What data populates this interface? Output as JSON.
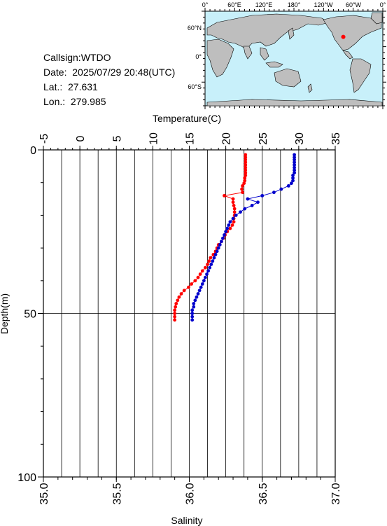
{
  "station": {
    "callsign_line": "Callsign:WTDO",
    "date_line": "Date:  2025/07/29 20:48(UTC)",
    "lat_line": "Lat.:  27.631",
    "lon_line": "Lon.:  279.985"
  },
  "map": {
    "top_labels": [
      "0°",
      "60°E",
      "120°E",
      "180°",
      "120°W",
      "60°W",
      "0°"
    ],
    "left_labels": [
      "60°N",
      "0°",
      "60°S"
    ],
    "ocean_color": "#c8f0fa",
    "land_color": "#bebebe",
    "marker_color": "#ff0000",
    "marker_lon": 279.985,
    "marker_lat": 27.631
  },
  "chart_data": {
    "type": "line",
    "title": "",
    "x_top_label": "Temperature(C)",
    "x_bottom_label": "Salinity",
    "ylabel": "Depth(m)",
    "temperature_ticks": [
      "-5",
      "0",
      "5",
      "10",
      "15",
      "20",
      "25",
      "30",
      "35"
    ],
    "salinity_ticks": [
      "35.0",
      "35.5",
      "36.0",
      "36.5",
      "37.0"
    ],
    "depth_ticks": [
      "0",
      "50",
      "100"
    ],
    "temperature_range": [
      -5,
      35
    ],
    "salinity_range": [
      35.0,
      37.0
    ],
    "depth_range": [
      0,
      100
    ],
    "series": [
      {
        "name": "Temperature",
        "axis": "temperature",
        "color": "#ff0000",
        "depth": [
          1.5,
          2.3,
          3.0,
          3.8,
          4.6,
          5.4,
          6.2,
          7.0,
          7.8,
          8.6,
          9.4,
          10.2,
          11.0,
          12.0,
          13.0,
          14.0,
          15.0,
          16.0,
          17.0,
          18.0,
          19.0,
          20.0,
          21.0,
          22.0,
          23.0,
          24.0,
          25.0,
          26.0,
          27.0,
          28.0,
          29.0,
          30.0,
          31.0,
          32.0,
          33.0,
          34.0,
          35.0,
          36.0,
          37.0,
          38.0,
          39.0,
          40.0,
          41.0,
          42.0,
          43.0,
          44.0,
          45.0,
          46.0,
          47.0,
          48.0,
          49.0,
          50.0,
          51.0,
          52.0
        ],
        "values": [
          22.7,
          22.7,
          22.7,
          22.7,
          22.7,
          22.7,
          22.7,
          22.7,
          22.7,
          22.6,
          22.6,
          22.5,
          22.3,
          22.2,
          22.3,
          19.8,
          21.0,
          21.0,
          21.1,
          21.2,
          21.2,
          21.2,
          21.1,
          21.1,
          20.9,
          20.6,
          20.2,
          19.9,
          19.7,
          19.4,
          19.0,
          18.8,
          18.6,
          18.3,
          17.9,
          17.7,
          17.5,
          17.2,
          16.8,
          16.5,
          16.2,
          15.8,
          15.3,
          14.9,
          14.3,
          13.9,
          13.6,
          13.4,
          13.2,
          13.1,
          13.0,
          13.0,
          13.0,
          13.0
        ]
      },
      {
        "name": "Salinity",
        "axis": "salinity",
        "color": "#0000cc",
        "depth": [
          1.5,
          2.3,
          3.0,
          3.8,
          4.6,
          5.4,
          6.2,
          7.0,
          7.8,
          8.6,
          9.4,
          10.2,
          11.0,
          12.0,
          13.0,
          14.0,
          15.0,
          16.0,
          17.0,
          18.0,
          19.0,
          20.0,
          21.0,
          22.0,
          23.0,
          24.0,
          25.0,
          26.0,
          27.0,
          28.0,
          29.0,
          30.0,
          31.0,
          32.0,
          33.0,
          34.0,
          35.0,
          36.0,
          37.0,
          38.0,
          39.0,
          40.0,
          41.0,
          42.0,
          43.0,
          44.0,
          45.0,
          46.0,
          47.0,
          48.0,
          49.0,
          50.0,
          51.0,
          52.0
        ],
        "values": [
          36.72,
          36.72,
          36.72,
          36.72,
          36.72,
          36.72,
          36.72,
          36.72,
          36.71,
          36.71,
          36.71,
          36.7,
          36.68,
          36.63,
          36.58,
          36.5,
          36.4,
          36.47,
          36.43,
          36.38,
          36.35,
          36.32,
          36.3,
          36.28,
          36.27,
          36.26,
          36.25,
          36.24,
          36.23,
          36.22,
          36.21,
          36.2,
          36.19,
          36.18,
          36.17,
          36.16,
          36.15,
          36.14,
          36.13,
          36.12,
          36.11,
          36.1,
          36.09,
          36.08,
          36.07,
          36.06,
          36.05,
          36.04,
          36.03,
          36.03,
          36.02,
          36.02,
          36.02,
          36.02
        ]
      }
    ],
    "grid": true
  }
}
